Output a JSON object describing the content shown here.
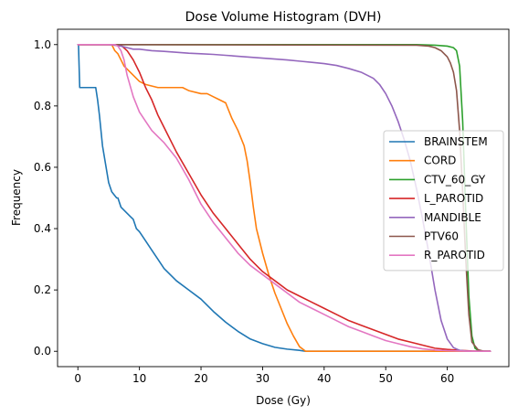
{
  "chart_data": {
    "type": "line",
    "title": "Dose Volume Histogram (DVH)",
    "xlabel": "Dose (Gy)",
    "ylabel": "Frequency",
    "xlim": [
      -3.3,
      70.0
    ],
    "ylim": [
      -0.05,
      1.05
    ],
    "xticks": [
      0,
      10,
      20,
      30,
      40,
      50,
      60
    ],
    "xtick_labels": [
      "0",
      "10",
      "20",
      "30",
      "40",
      "50",
      "60"
    ],
    "yticks": [
      0.0,
      0.2,
      0.4,
      0.6,
      0.8,
      1.0
    ],
    "ytick_labels": [
      "0.0",
      "0.2",
      "0.4",
      "0.6",
      "0.8",
      "1.0"
    ],
    "grid": false,
    "legend_position": "center-right",
    "series": [
      {
        "name": "BRAINSTEM",
        "color": "#1f77b4",
        "x": [
          0,
          0.1,
          0.3,
          2.9,
          3.2,
          3.5,
          4.0,
          4.5,
          5.0,
          5.5,
          6.3,
          6.5,
          7.0,
          8.0,
          8.5,
          9.0,
          9.5,
          10.0,
          11.0,
          12.0,
          13.0,
          14.0,
          16.0,
          18.0,
          20.0,
          22.0,
          24.0,
          26.0,
          28.0,
          30.0,
          32.0,
          34.0,
          36.0,
          37.0,
          45.0,
          55.0,
          60.0,
          67.0
        ],
        "y": [
          1.0,
          1.0,
          0.86,
          0.86,
          0.82,
          0.77,
          0.67,
          0.61,
          0.55,
          0.52,
          0.5,
          0.5,
          0.47,
          0.45,
          0.44,
          0.43,
          0.4,
          0.39,
          0.36,
          0.33,
          0.3,
          0.27,
          0.23,
          0.2,
          0.17,
          0.13,
          0.095,
          0.065,
          0.04,
          0.025,
          0.013,
          0.007,
          0.003,
          0.0,
          0.0,
          0.0,
          0.0,
          0.0
        ]
      },
      {
        "name": "CORD",
        "color": "#ff7f0e",
        "x": [
          0,
          5.5,
          6.0,
          6.5,
          7.0,
          7.5,
          8.0,
          9.0,
          10.0,
          11.0,
          13.0,
          15.0,
          17.0,
          18.0,
          20.0,
          21.0,
          22.0,
          23.0,
          24.0,
          25.0,
          26.0,
          27.0,
          27.5,
          28.0,
          28.5,
          29.0,
          30.0,
          31.0,
          32.0,
          33.0,
          34.0,
          35.0,
          36.0,
          37.0,
          45.0,
          55.0,
          60.0,
          67.0
        ],
        "y": [
          1.0,
          1.0,
          0.98,
          0.97,
          0.95,
          0.93,
          0.92,
          0.9,
          0.88,
          0.87,
          0.86,
          0.86,
          0.86,
          0.85,
          0.84,
          0.84,
          0.83,
          0.82,
          0.81,
          0.76,
          0.72,
          0.67,
          0.62,
          0.55,
          0.47,
          0.4,
          0.32,
          0.25,
          0.19,
          0.14,
          0.09,
          0.05,
          0.015,
          0.0,
          0.0,
          0.0,
          0.0,
          0.0
        ]
      },
      {
        "name": "CTV_60_GY",
        "color": "#2ca02c",
        "x": [
          0,
          55.0,
          58.0,
          60.0,
          61.0,
          61.5,
          62.0,
          62.5,
          63.0,
          63.5,
          64.0,
          64.5,
          65.0,
          66.0,
          67.0
        ],
        "y": [
          1.0,
          1.0,
          0.998,
          0.995,
          0.99,
          0.98,
          0.93,
          0.75,
          0.45,
          0.18,
          0.05,
          0.01,
          0.003,
          0.0,
          0.0
        ]
      },
      {
        "name": "L_PAROTID",
        "color": "#d62728",
        "x": [
          0,
          6.0,
          7.0,
          8.0,
          9.0,
          10.0,
          11.0,
          12.0,
          13.0,
          14.0,
          16.0,
          18.0,
          20.0,
          22.0,
          24.0,
          26.0,
          28.0,
          30.0,
          32.0,
          34.0,
          36.0,
          38.0,
          40.0,
          42.0,
          44.0,
          46.0,
          48.0,
          50.0,
          52.0,
          54.0,
          56.0,
          58.0,
          60.0,
          62.0,
          64.0,
          67.0
        ],
        "y": [
          1.0,
          1.0,
          0.998,
          0.98,
          0.95,
          0.91,
          0.86,
          0.82,
          0.77,
          0.73,
          0.65,
          0.58,
          0.51,
          0.45,
          0.4,
          0.35,
          0.3,
          0.26,
          0.23,
          0.2,
          0.18,
          0.16,
          0.14,
          0.12,
          0.1,
          0.085,
          0.07,
          0.055,
          0.04,
          0.03,
          0.02,
          0.01,
          0.006,
          0.003,
          0.001,
          0.0
        ]
      },
      {
        "name": "MANDIBLE",
        "color": "#9467bd",
        "x": [
          0,
          5.0,
          6.0,
          7.0,
          8.0,
          9.0,
          10.0,
          12.0,
          14.0,
          16.0,
          18.0,
          20.0,
          22.0,
          24.0,
          26.0,
          28.0,
          30.0,
          32.0,
          34.0,
          36.0,
          38.0,
          40.0,
          42.0,
          44.0,
          46.0,
          48.0,
          49.0,
          50.0,
          51.0,
          52.0,
          53.0,
          54.0,
          55.0,
          56.0,
          57.0,
          58.0,
          59.0,
          60.0,
          61.0,
          62.0,
          63.0,
          64.0,
          65.0,
          67.0
        ],
        "y": [
          1.0,
          1.0,
          0.998,
          0.995,
          0.99,
          0.985,
          0.985,
          0.98,
          0.978,
          0.975,
          0.972,
          0.97,
          0.968,
          0.965,
          0.962,
          0.959,
          0.956,
          0.953,
          0.95,
          0.946,
          0.942,
          0.938,
          0.932,
          0.922,
          0.91,
          0.89,
          0.87,
          0.84,
          0.8,
          0.75,
          0.69,
          0.62,
          0.53,
          0.43,
          0.32,
          0.2,
          0.1,
          0.04,
          0.012,
          0.003,
          0.001,
          0.0,
          0.0,
          0.0
        ]
      },
      {
        "name": "PTV60",
        "color": "#8c564b",
        "x": [
          0,
          55.0,
          57.0,
          58.0,
          59.0,
          59.5,
          60.0,
          60.5,
          61.0,
          61.5,
          62.0,
          62.5,
          63.0,
          63.5,
          64.0,
          65.0,
          66.0,
          67.0
        ],
        "y": [
          1.0,
          0.998,
          0.995,
          0.99,
          0.98,
          0.97,
          0.96,
          0.94,
          0.91,
          0.85,
          0.72,
          0.52,
          0.3,
          0.12,
          0.03,
          0.005,
          0.0,
          0.0
        ]
      },
      {
        "name": "R_PAROTID",
        "color": "#e377c2",
        "x": [
          0,
          6.0,
          6.5,
          7.0,
          7.5,
          8.0,
          9.0,
          10.0,
          11.0,
          12.0,
          13.0,
          14.0,
          16.0,
          18.0,
          20.0,
          22.0,
          24.0,
          26.0,
          28.0,
          30.0,
          32.0,
          34.0,
          36.0,
          38.0,
          40.0,
          42.0,
          44.0,
          46.0,
          48.0,
          50.0,
          52.0,
          54.0,
          56.0,
          58.0,
          60.0,
          62.0,
          64.0,
          67.0
        ],
        "y": [
          1.0,
          1.0,
          0.995,
          0.98,
          0.95,
          0.9,
          0.83,
          0.78,
          0.75,
          0.72,
          0.7,
          0.68,
          0.63,
          0.56,
          0.48,
          0.42,
          0.37,
          0.32,
          0.28,
          0.25,
          0.22,
          0.19,
          0.16,
          0.14,
          0.12,
          0.1,
          0.08,
          0.065,
          0.05,
          0.035,
          0.025,
          0.015,
          0.008,
          0.004,
          0.002,
          0.001,
          0.0,
          0.0
        ]
      }
    ]
  }
}
